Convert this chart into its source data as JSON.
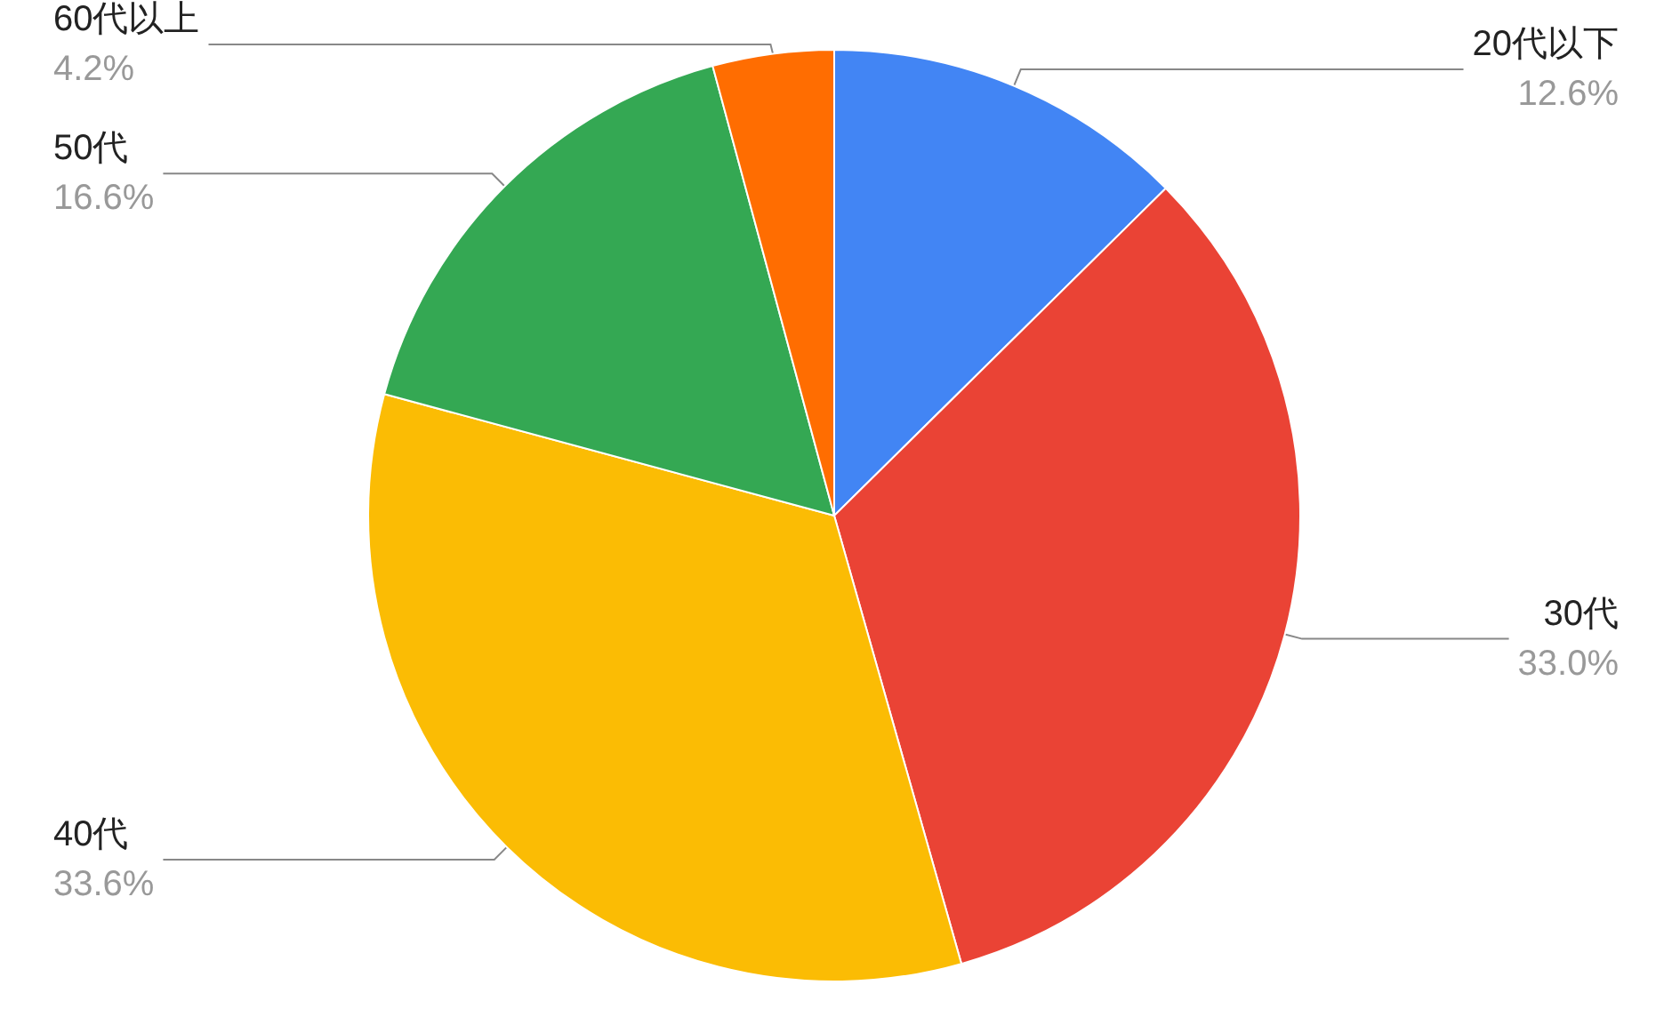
{
  "chart_data": {
    "type": "pie",
    "categories": [
      "20代以下",
      "30代",
      "40代",
      "50代",
      "60代以上"
    ],
    "values": [
      12.6,
      33.0,
      33.6,
      16.6,
      4.2
    ],
    "value_labels": [
      "12.6%",
      "33.0%",
      "33.6%",
      "16.6%",
      "4.2%"
    ],
    "colors": [
      "#4285f4",
      "#ea4335",
      "#fbbc04",
      "#34a853",
      "#ff6d01"
    ]
  }
}
